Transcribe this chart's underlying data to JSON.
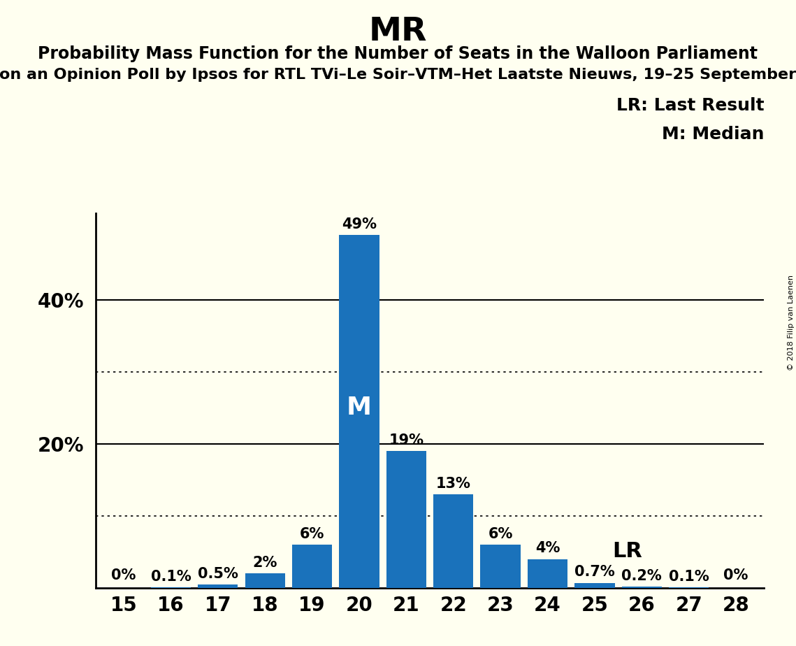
{
  "title": "MR",
  "subtitle": "Probability Mass Function for the Number of Seats in the Walloon Parliament",
  "subtitle2": "on an Opinion Poll by Ipsos for RTL TVi–Le Soir–VTM–Het Laatste Nieuws, 19–25 September",
  "copyright": "© 2018 Filip van Laenen",
  "seats": [
    15,
    16,
    17,
    18,
    19,
    20,
    21,
    22,
    23,
    24,
    25,
    26,
    27,
    28
  ],
  "probabilities": [
    0.0,
    0.1,
    0.5,
    2.0,
    6.0,
    49.0,
    19.0,
    13.0,
    6.0,
    4.0,
    0.7,
    0.2,
    0.1,
    0.0
  ],
  "bar_color": "#1a72bb",
  "background_color": "#fffff0",
  "median_seat": 20,
  "last_result_seat": 25,
  "legend_text_lr": "LR: Last Result",
  "legend_text_m": "M: Median",
  "solid_gridlines": [
    20.0,
    40.0
  ],
  "dotted_gridlines": [
    10.0,
    30.0
  ],
  "ylim": [
    0,
    52
  ],
  "bar_labels": [
    "0%",
    "0.1%",
    "0.5%",
    "2%",
    "6%",
    "49%",
    "19%",
    "13%",
    "6%",
    "4%",
    "0.7%",
    "0.2%",
    "0.1%",
    "0%"
  ],
  "title_fontsize": 34,
  "subtitle_fontsize": 17,
  "subtitle2_fontsize": 16,
  "tick_fontsize": 20,
  "bar_label_fontsize": 15,
  "legend_fontsize": 18,
  "median_label_fontsize": 26,
  "lr_label_fontsize": 22
}
